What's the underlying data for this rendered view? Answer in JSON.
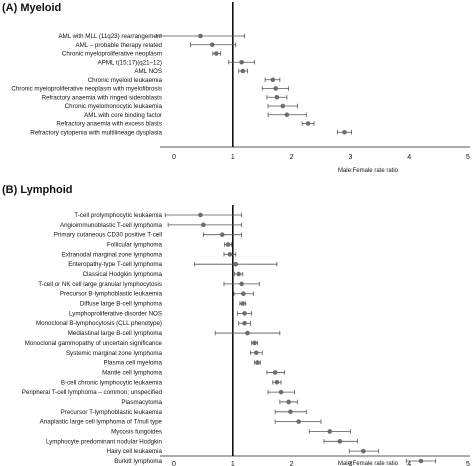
{
  "chart_data": [
    {
      "type": "scatter",
      "subtype": "forest-plot",
      "panel_label": "(A)",
      "title": "Myeloid",
      "xlabel": "Male:Female rate ratio",
      "xlim": [
        0,
        5
      ],
      "xticks": [
        "0",
        "1",
        "2",
        "3",
        "4",
        "5"
      ],
      "reference_line": 1,
      "categories": [
        "AML with MLL (11q23) rearrangement",
        "AML – probable therapy related",
        "Chronic myeloproliferative neoplasm",
        "APML t(15;17)(q21–12)",
        "AML NOS",
        "Chronic myeloid leukaemia",
        "Chronic myeloproliferative neoplasm with myelofibrosis",
        "Refractory anaemia with ringed sideroblasts",
        "Chronic myelomonocytic leukaemia",
        "AML with core binding factor",
        "Refractory anaemia with excess blasts",
        "Refractory cytopenia with multilineage dysplasia"
      ],
      "values": [
        0.45,
        0.65,
        0.72,
        1.15,
        1.17,
        1.68,
        1.73,
        1.75,
        1.85,
        1.92,
        2.28,
        2.9
      ],
      "ci_low": [
        -0.3,
        0.28,
        0.66,
        0.93,
        1.1,
        1.55,
        1.5,
        1.58,
        1.6,
        1.6,
        2.18,
        2.78
      ],
      "ci_high": [
        1.2,
        1.05,
        0.79,
        1.37,
        1.25,
        1.8,
        1.95,
        1.92,
        2.1,
        2.25,
        2.38,
        3.02
      ]
    },
    {
      "type": "scatter",
      "subtype": "forest-plot",
      "panel_label": "(B)",
      "title": "Lymphoid",
      "xlabel": "Male:Female rate ratio",
      "xlim": [
        0,
        5
      ],
      "xticks": [
        "0",
        "1",
        "2",
        "3",
        "4",
        "5"
      ],
      "reference_line": 1,
      "categories": [
        "T-cell prolymphocytic leukaemia",
        "Angioimmunoblastic T-cell lymphoma",
        "Primary cutaneous CD30 positive T-cell",
        "Follicular lymphoma",
        "Extranodal marginal zone lymphoma",
        "Enteropathy-type T-cell lymphoma",
        "Classical Hodgkin lymphoma",
        "T-cell or NK cell large granular lymphocytosis",
        "Precursor B-lymphoblastic leukaemia",
        "Diffuse large B-cell lymphoma",
        "Lymphoproliferative disorder NOS",
        "Monoclonal B-lymphocytosis (CLL phenotype)",
        "Mediastinal large B-cell lymphoma",
        "Monoclonal gammopathy of uncertain significance",
        "Systemic marginal zone lymphoma",
        "Plasma cell myeloma",
        "Mantle cell lymphoma",
        "B-cell chronic lymphocytic leukaemia",
        "Peripheral T-cell lymphoma – common; unspecified",
        "Plasmacytoma",
        "Precursor T-lymphoblastic leukaemia",
        "Anaplastic large cell lymphoma of T/null type",
        "Mycosis fungoides",
        "Lymphocyte predominant nodular Hodgkin",
        "Hairy cell leukaemia",
        "Burkitt lymphoma"
      ],
      "values": [
        0.45,
        0.5,
        0.82,
        0.92,
        0.95,
        1.05,
        1.1,
        1.15,
        1.18,
        1.17,
        1.2,
        1.2,
        1.25,
        1.37,
        1.4,
        1.42,
        1.72,
        1.75,
        1.82,
        1.95,
        1.98,
        2.12,
        2.65,
        2.82,
        3.22,
        4.2
      ],
      "ci_low": [
        -0.15,
        -0.1,
        0.5,
        0.86,
        0.85,
        0.35,
        1.03,
        0.85,
        1.02,
        1.12,
        1.08,
        1.1,
        0.7,
        1.32,
        1.3,
        1.37,
        1.58,
        1.68,
        1.6,
        1.8,
        1.72,
        1.72,
        2.3,
        2.55,
        2.98,
        3.95
      ],
      "ci_high": [
        1.15,
        1.15,
        1.15,
        0.98,
        1.05,
        1.75,
        1.17,
        1.45,
        1.35,
        1.22,
        1.32,
        1.3,
        1.8,
        1.42,
        1.5,
        1.47,
        1.88,
        1.82,
        2.05,
        2.1,
        2.25,
        2.5,
        3.0,
        3.12,
        3.48,
        4.45
      ]
    }
  ]
}
